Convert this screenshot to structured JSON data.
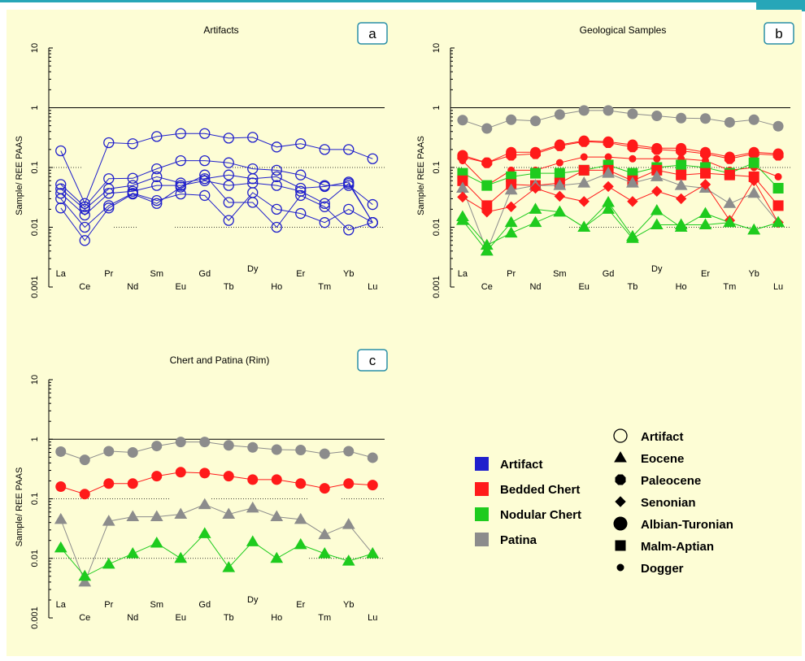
{
  "colors": {
    "artifact": "#1f1fcc",
    "bedded": "#ff1a1a",
    "nodular": "#1ecb1e",
    "patina": "#8c8c8c",
    "bg": "#fdfdd5",
    "box": "#2a8fa6"
  },
  "elements": [
    "La",
    "Ce",
    "Pr",
    "Nd",
    "Sm",
    "Eu",
    "Gd",
    "Tb",
    "Dy",
    "Ho",
    "Er",
    "Tm",
    "Yb",
    "Lu"
  ],
  "chart_data": [
    {
      "type": "line",
      "panel": "a",
      "title": "Artifacts",
      "ylabel": "Sample/ REE PAAS",
      "yscale": "log",
      "yticks": [
        "10",
        "1",
        "0.1",
        "0.01",
        "0.001"
      ],
      "ylim": [
        0.001,
        10
      ],
      "series": [
        {
          "group": "artifact",
          "marker": "circle",
          "values": [
            0.19,
            0.025,
            0.26,
            0.25,
            0.33,
            0.37,
            0.37,
            0.31,
            0.32,
            0.22,
            0.25,
            0.2,
            0.2,
            0.14
          ]
        },
        {
          "group": "artifact",
          "marker": "circle",
          "values": [
            0.052,
            0.022,
            0.065,
            0.066,
            0.095,
            0.13,
            0.13,
            0.12,
            0.095,
            0.09,
            0.075,
            0.05,
            0.05,
            0.024
          ]
        },
        {
          "group": "artifact",
          "marker": "circle",
          "values": [
            0.044,
            0.02,
            0.044,
            0.05,
            0.07,
            0.055,
            0.065,
            0.075,
            0.065,
            0.07,
            0.045,
            0.048,
            0.057,
            0.012
          ]
        },
        {
          "group": "artifact",
          "marker": "circle",
          "values": [
            0.037,
            0.016,
            0.037,
            0.04,
            0.05,
            0.05,
            0.06,
            0.05,
            0.055,
            0.05,
            0.04,
            0.025,
            0.054,
            0.012
          ]
        },
        {
          "group": "artifact",
          "marker": "circle",
          "values": [
            0.03,
            0.01,
            0.023,
            0.037,
            0.028,
            0.036,
            0.034,
            0.013,
            0.038,
            0.02,
            0.017,
            0.012,
            0.02,
            0.012
          ]
        },
        {
          "group": "artifact",
          "marker": "circle",
          "values": [
            0.021,
            0.006,
            0.021,
            0.036,
            0.025,
            0.047,
            0.075,
            0.026,
            0.026,
            0.01,
            0.034,
            0.022,
            0.009,
            0.012
          ]
        }
      ]
    },
    {
      "type": "line",
      "panel": "b",
      "title": "Geological Samples",
      "ylabel": "Sample/ REE PAAS",
      "yscale": "log",
      "yticks": [
        "10",
        "1",
        "0.1",
        "0.01",
        "0.001"
      ],
      "ylim": [
        0.001,
        10
      ],
      "series": [
        {
          "group": "patina",
          "marker": "circle",
          "values": [
            0.62,
            0.45,
            0.63,
            0.6,
            0.77,
            0.9,
            0.9,
            0.79,
            0.73,
            0.67,
            0.66,
            0.57,
            0.63,
            0.49
          ]
        },
        {
          "group": "bedded",
          "marker": "circle",
          "values": [
            0.16,
            0.12,
            0.18,
            0.18,
            0.24,
            0.28,
            0.27,
            0.24,
            0.21,
            0.21,
            0.18,
            0.15,
            0.18,
            0.17
          ]
        },
        {
          "group": "bedded",
          "marker": "octagon",
          "values": [
            0.15,
            0.12,
            0.16,
            0.17,
            0.23,
            0.27,
            0.26,
            0.22,
            0.2,
            0.19,
            0.17,
            0.14,
            0.17,
            0.16
          ]
        },
        {
          "group": "bedded",
          "marker": "dot",
          "values": [
            0.13,
            0.05,
            0.09,
            0.09,
            0.12,
            0.15,
            0.15,
            0.14,
            0.14,
            0.14,
            0.13,
            0.09,
            0.1,
            0.07
          ]
        },
        {
          "group": "nodular",
          "marker": "square",
          "values": [
            0.08,
            0.05,
            0.07,
            0.08,
            0.08,
            0.09,
            0.11,
            0.08,
            0.1,
            0.11,
            0.1,
            0.08,
            0.12,
            0.045
          ]
        },
        {
          "group": "bedded",
          "marker": "square",
          "values": [
            0.06,
            0.023,
            0.052,
            0.05,
            0.055,
            0.09,
            0.09,
            0.06,
            0.09,
            0.075,
            0.08,
            0.075,
            0.07,
            0.023
          ]
        },
        {
          "group": "patina",
          "marker": "triangle",
          "values": [
            0.045,
            0.004,
            0.042,
            0.05,
            0.05,
            0.055,
            0.08,
            0.055,
            0.07,
            0.05,
            0.045,
            0.025,
            0.037,
            0.012
          ]
        },
        {
          "group": "bedded",
          "marker": "diamond",
          "values": [
            0.032,
            0.018,
            0.022,
            0.045,
            0.033,
            0.027,
            0.048,
            0.027,
            0.04,
            0.03,
            0.052,
            0.013,
            0.06,
            0.012
          ]
        },
        {
          "group": "nodular",
          "marker": "triangle",
          "values": [
            0.015,
            0.005,
            0.008,
            0.012,
            0.018,
            0.01,
            0.026,
            0.007,
            0.019,
            0.01,
            0.017,
            0.012,
            0.009,
            0.012
          ]
        },
        {
          "group": "nodular",
          "marker": "triangle",
          "values": [
            0.013,
            0.004,
            0.012,
            0.02,
            0.018,
            0.01,
            0.02,
            0.0065,
            0.011,
            0.011,
            0.011,
            0.012,
            0.009,
            0.012
          ]
        }
      ]
    },
    {
      "type": "line",
      "panel": "c",
      "title": "Chert and Patina (Rim)",
      "ylabel": "Sample/ REE PAAS",
      "yscale": "log",
      "yticks": [
        "10",
        "1",
        "0.1",
        "0.01",
        "0.001"
      ],
      "ylim": [
        0.001,
        10
      ],
      "series": [
        {
          "group": "patina",
          "marker": "circle",
          "values": [
            0.62,
            0.45,
            0.63,
            0.6,
            0.77,
            0.9,
            0.9,
            0.79,
            0.73,
            0.67,
            0.66,
            0.57,
            0.63,
            0.49
          ]
        },
        {
          "group": "bedded",
          "marker": "circle",
          "values": [
            0.16,
            0.12,
            0.18,
            0.18,
            0.24,
            0.28,
            0.27,
            0.24,
            0.21,
            0.21,
            0.18,
            0.15,
            0.18,
            0.17
          ]
        },
        {
          "group": "patina",
          "marker": "triangle",
          "values": [
            0.045,
            0.004,
            0.042,
            0.05,
            0.05,
            0.055,
            0.08,
            0.055,
            0.07,
            0.05,
            0.045,
            0.025,
            0.037,
            0.012
          ]
        },
        {
          "group": "nodular",
          "marker": "triangle",
          "values": [
            0.015,
            0.005,
            0.008,
            0.012,
            0.018,
            0.01,
            0.026,
            0.007,
            0.019,
            0.01,
            0.017,
            0.012,
            0.009,
            0.012
          ]
        }
      ]
    }
  ],
  "panel_labels": {
    "a": "a",
    "b": "b",
    "c": "c"
  },
  "legend_colors": [
    {
      "label": "Artifact",
      "color": "artifact"
    },
    {
      "label": "Bedded Chert",
      "color": "bedded"
    },
    {
      "label": "Nodular Chert",
      "color": "nodular"
    },
    {
      "label": "Patina",
      "color": "patina"
    }
  ],
  "legend_markers": [
    {
      "label": "Artifact",
      "marker": "circle-open"
    },
    {
      "label": "Eocene",
      "marker": "triangle"
    },
    {
      "label": "Paleocene",
      "marker": "octagon"
    },
    {
      "label": "Senonian",
      "marker": "diamond"
    },
    {
      "label": "Albian-Turonian",
      "marker": "circle"
    },
    {
      "label": "Malm-Aptian",
      "marker": "square"
    },
    {
      "label": "Dogger",
      "marker": "dot"
    }
  ]
}
